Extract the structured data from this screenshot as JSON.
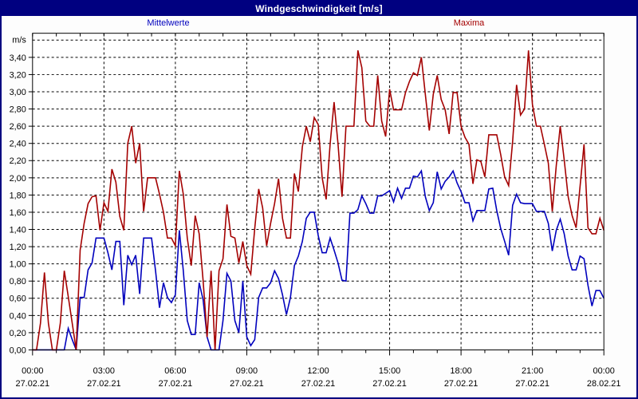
{
  "window": {
    "title": "Windgeschwindigkeit [m/s]",
    "titlebar_color": "#000080",
    "background_color": "#ffffff"
  },
  "chart_data": {
    "type": "line",
    "title": "Windgeschwindigkeit [m/s]",
    "grid": "dashed",
    "legend_position": "top",
    "x_axis": {
      "interval_minutes": 10,
      "major_tick_hours": 3,
      "minor_tick_hours": 1,
      "tick_times": [
        "00:00",
        "03:00",
        "06:00",
        "09:00",
        "12:00",
        "15:00",
        "18:00",
        "21:00",
        "00:00"
      ],
      "tick_dates": [
        "27.02.21",
        "27.02.21",
        "27.02.21",
        "27.02.21",
        "27.02.21",
        "27.02.21",
        "27.02.21",
        "27.02.21",
        "28.02.21"
      ]
    },
    "y_axis": {
      "unit": "m/s",
      "min": 0,
      "max_labeled": 3.4,
      "max_gridline": 3.6,
      "plot_max": 3.68,
      "tick_step": 0.2,
      "tick_labels": [
        "0,00",
        "0,20",
        "0,40",
        "0,60",
        "0,80",
        "1,00",
        "1,20",
        "1,40",
        "1,60",
        "1,80",
        "2,00",
        "2,20",
        "2,40",
        "2,60",
        "2,80",
        "3,00",
        "3,20",
        "3,40"
      ]
    },
    "series": [
      {
        "name": "Mittelwerte",
        "color": "#0000bd",
        "values": [
          0.0,
          0.0,
          0.0,
          0.0,
          0.0,
          0.0,
          0.0,
          0.0,
          0.0,
          0.25,
          0.12,
          0.0,
          0.61,
          0.61,
          0.93,
          1.01,
          1.3,
          1.3,
          1.3,
          1.13,
          0.93,
          1.26,
          1.26,
          0.52,
          1.1,
          0.99,
          1.1,
          0.65,
          1.3,
          1.3,
          1.3,
          0.92,
          0.49,
          0.78,
          0.61,
          0.55,
          0.64,
          1.39,
          0.92,
          0.34,
          0.18,
          0.18,
          0.78,
          0.58,
          0.15,
          0.0,
          0.0,
          0.0,
          0.34,
          0.89,
          0.8,
          0.34,
          0.2,
          0.8,
          0.15,
          0.05,
          0.12,
          0.61,
          0.72,
          0.72,
          0.78,
          0.92,
          0.83,
          0.64,
          0.41,
          0.61,
          0.98,
          1.09,
          1.26,
          1.53,
          1.6,
          1.6,
          1.33,
          1.13,
          1.13,
          1.3,
          1.16,
          1.01,
          0.81,
          0.8,
          1.59,
          1.59,
          1.63,
          1.79,
          1.7,
          1.59,
          1.59,
          1.79,
          1.79,
          1.82,
          1.85,
          1.72,
          1.88,
          1.76,
          1.88,
          1.88,
          2.02,
          2.01,
          2.08,
          1.78,
          1.62,
          1.71,
          2.07,
          1.87,
          1.96,
          2.01,
          2.08,
          1.94,
          1.84,
          1.71,
          1.71,
          1.5,
          1.62,
          1.62,
          1.62,
          1.87,
          1.88,
          1.62,
          1.41,
          1.26,
          1.1,
          1.68,
          1.81,
          1.71,
          1.7,
          1.7,
          1.7,
          1.61,
          1.61,
          1.61,
          1.47,
          1.15,
          1.39,
          1.52,
          1.35,
          1.09,
          0.93,
          0.93,
          1.09,
          1.06,
          0.75,
          0.51,
          0.69,
          0.69,
          0.6
        ]
      },
      {
        "name": "Maxima",
        "color": "#a40000",
        "values": [
          0.0,
          0.0,
          0.31,
          0.9,
          0.31,
          0.0,
          0.0,
          0.31,
          0.92,
          0.62,
          0.31,
          0.0,
          1.16,
          1.47,
          1.7,
          1.78,
          1.79,
          1.39,
          1.71,
          1.61,
          2.1,
          1.95,
          1.55,
          1.39,
          2.4,
          2.6,
          2.17,
          2.4,
          1.61,
          2.0,
          2.0,
          2.0,
          1.81,
          1.6,
          1.3,
          1.3,
          1.21,
          2.08,
          1.81,
          1.3,
          0.98,
          1.56,
          1.35,
          0.8,
          0.15,
          0.92,
          0.0,
          0.92,
          1.06,
          1.69,
          1.32,
          1.3,
          1.01,
          1.26,
          0.98,
          0.88,
          1.41,
          1.87,
          1.65,
          1.21,
          1.47,
          1.7,
          1.99,
          1.53,
          1.3,
          1.3,
          2.05,
          1.84,
          2.36,
          2.6,
          2.42,
          2.7,
          2.62,
          2.0,
          1.75,
          2.39,
          2.88,
          2.39,
          1.78,
          2.6,
          2.6,
          2.6,
          3.48,
          3.28,
          2.66,
          2.6,
          2.6,
          3.19,
          2.66,
          2.48,
          3.03,
          2.79,
          2.79,
          2.79,
          2.99,
          3.12,
          3.22,
          3.19,
          3.4,
          2.97,
          2.55,
          2.97,
          3.19,
          2.91,
          2.79,
          2.51,
          2.99,
          2.99,
          2.6,
          2.47,
          2.39,
          1.93,
          2.21,
          2.19,
          2.01,
          2.5,
          2.5,
          2.5,
          2.27,
          2.01,
          1.91,
          2.42,
          3.08,
          2.73,
          2.8,
          3.48,
          2.85,
          2.6,
          2.6,
          2.39,
          2.17,
          1.61,
          2.14,
          2.6,
          2.21,
          1.78,
          1.56,
          1.42,
          1.9,
          2.39,
          1.42,
          1.35,
          1.35,
          1.53,
          1.39
        ]
      }
    ]
  }
}
